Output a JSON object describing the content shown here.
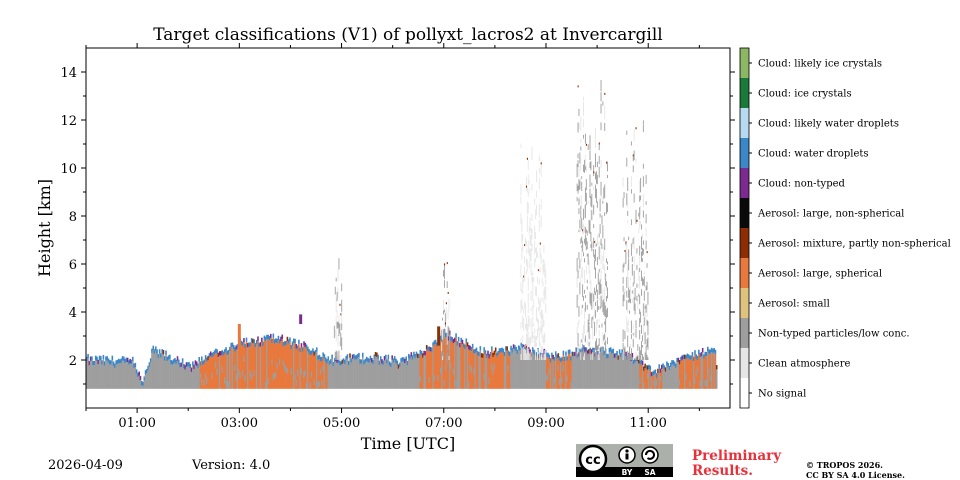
{
  "title": "Target classifications (V1) of pollyxt_lacros2 at Invercargill",
  "footer": {
    "date": "2026-04-09",
    "version": "Version: 4.0",
    "preliminary_line1": "Preliminary",
    "preliminary_line2": "Results.",
    "copyright_line1": "© TROPOS 2026.",
    "copyright_line2": "CC BY SA 4.0 License.",
    "badge_cc": "cc",
    "badge_by": "BY",
    "badge_sa": "SA"
  },
  "chart_data": {
    "type": "heatmap",
    "title": "Target classifications (V1) of pollyxt_lacros2 at Invercargill",
    "xlabel": "Time [UTC]",
    "ylabel": "Height [km]",
    "xlim_hours": [
      0.0,
      12.6
    ],
    "ylim_km": [
      0.0,
      15.0
    ],
    "x_ticks": [
      {
        "value": 1,
        "label": "01:00"
      },
      {
        "value": 3,
        "label": "03:00"
      },
      {
        "value": 5,
        "label": "05:00"
      },
      {
        "value": 7,
        "label": "07:00"
      },
      {
        "value": 9,
        "label": "09:00"
      },
      {
        "value": 11,
        "label": "11:00"
      }
    ],
    "x_minor_ticks": [
      0,
      2,
      4,
      6,
      8,
      10,
      12
    ],
    "y_ticks": [
      2,
      4,
      6,
      8,
      10,
      12,
      14
    ],
    "y_minor_ticks": [
      1,
      3,
      5,
      7,
      9,
      11,
      13
    ],
    "no_signal_below_km": 0.8,
    "legend": [
      {
        "label": "No signal",
        "color": "#ffffff"
      },
      {
        "label": "Clean atmosphere",
        "color": "#e6e6e6"
      },
      {
        "label": "Non-typed particles/low conc.",
        "color": "#9e9e9e"
      },
      {
        "label": "Aerosol: small",
        "color": "#dfc27d"
      },
      {
        "label": "Aerosol: large, spherical",
        "color": "#e8783c"
      },
      {
        "label": "Aerosol: mixture, partly non-spherical",
        "color": "#8c2d04"
      },
      {
        "label": "Aerosol: large, non-spherical",
        "color": "#0a0a0a"
      },
      {
        "label": "Cloud: non-typed",
        "color": "#7b2a8f"
      },
      {
        "label": "Cloud: water droplets",
        "color": "#3b87c8"
      },
      {
        "label": "Cloud: likely water droplets",
        "color": "#b7daf3"
      },
      {
        "label": "Cloud: ice crystals",
        "color": "#1a7a3a"
      },
      {
        "label": "Cloud: likely ice crystals",
        "color": "#8cb866"
      }
    ],
    "boundary_layer_top_km": [
      {
        "t": 0.0,
        "h": 1.9
      },
      {
        "t": 0.9,
        "h": 1.8
      },
      {
        "t": 1.1,
        "h": 0.9
      },
      {
        "t": 1.3,
        "h": 2.3
      },
      {
        "t": 2.0,
        "h": 1.6
      },
      {
        "t": 2.4,
        "h": 2.0
      },
      {
        "t": 3.0,
        "h": 2.6
      },
      {
        "t": 3.7,
        "h": 2.8
      },
      {
        "t": 4.3,
        "h": 2.4
      },
      {
        "t": 4.8,
        "h": 1.9
      },
      {
        "t": 5.6,
        "h": 2.0
      },
      {
        "t": 6.1,
        "h": 1.8
      },
      {
        "t": 6.6,
        "h": 2.2
      },
      {
        "t": 7.0,
        "h": 3.0
      },
      {
        "t": 7.8,
        "h": 2.2
      },
      {
        "t": 8.5,
        "h": 2.4
      },
      {
        "t": 9.2,
        "h": 2.0
      },
      {
        "t": 9.8,
        "h": 2.3
      },
      {
        "t": 10.6,
        "h": 2.1
      },
      {
        "t": 11.1,
        "h": 1.4
      },
      {
        "t": 11.8,
        "h": 2.0
      },
      {
        "t": 12.3,
        "h": 2.3
      },
      {
        "t": 12.35,
        "h": 0.9
      }
    ],
    "isolated_features": [
      {
        "t": 3.0,
        "h_bottom": 2.2,
        "h_top": 3.5,
        "class": "Aerosol: large, spherical"
      },
      {
        "t": 4.2,
        "h_bottom": 3.5,
        "h_top": 3.9,
        "class": "Cloud: non-typed"
      },
      {
        "t": 6.9,
        "h_bottom": 2.6,
        "h_top": 3.4,
        "class": "Aerosol: mixture, partly non-spherical"
      }
    ],
    "upper_plumes": [
      {
        "t_start": 4.85,
        "t_end": 5.0,
        "h_top_km": 6.5,
        "class": "Non-typed particles/low conc."
      },
      {
        "t_start": 6.95,
        "t_end": 7.1,
        "h_top_km": 6.0,
        "class": "Non-typed particles/low conc."
      },
      {
        "t_start": 8.5,
        "t_end": 9.0,
        "h_top_km": 11.0,
        "class": "Clean atmosphere"
      },
      {
        "t_start": 9.6,
        "t_end": 10.2,
        "h_top_km": 13.5,
        "class": "Non-typed particles/low conc."
      },
      {
        "t_start": 10.5,
        "t_end": 11.0,
        "h_top_km": 12.0,
        "class": "Non-typed particles/low conc."
      }
    ]
  }
}
